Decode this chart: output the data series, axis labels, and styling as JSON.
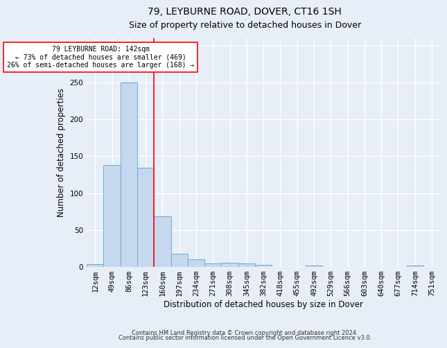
{
  "title1": "79, LEYBURNE ROAD, DOVER, CT16 1SH",
  "title2": "Size of property relative to detached houses in Dover",
  "xlabel": "Distribution of detached houses by size in Dover",
  "ylabel": "Number of detached properties",
  "footnote1": "Contains HM Land Registry data © Crown copyright and database right 2024.",
  "footnote2": "Contains public sector information licensed under the Open Government Licence v3.0.",
  "bin_labels": [
    "12sqm",
    "49sqm",
    "86sqm",
    "123sqm",
    "160sqm",
    "197sqm",
    "234sqm",
    "271sqm",
    "308sqm",
    "345sqm",
    "382sqm",
    "418sqm",
    "455sqm",
    "492sqm",
    "529sqm",
    "566sqm",
    "603sqm",
    "640sqm",
    "677sqm",
    "714sqm",
    "751sqm"
  ],
  "bar_values": [
    4,
    138,
    250,
    134,
    69,
    18,
    10,
    5,
    6,
    5,
    3,
    0,
    0,
    2,
    0,
    0,
    0,
    0,
    0,
    2,
    0
  ],
  "bar_color": "#c5d8ee",
  "bar_edgecolor": "#6aaad4",
  "red_line_x": 3.5,
  "annotation_text": "79 LEYBURNE ROAD: 142sqm\n← 73% of detached houses are smaller (469)\n26% of semi-detached houses are larger (168) →",
  "ylim": [
    0,
    310
  ],
  "yticks": [
    0,
    50,
    100,
    150,
    200,
    250,
    300
  ],
  "bg_color": "#e8eef7",
  "plot_bg_color": "#e8eef7",
  "grid_color": "#ffffff",
  "title1_fontsize": 10,
  "title2_fontsize": 9,
  "xlabel_fontsize": 8.5,
  "ylabel_fontsize": 8.5,
  "tick_fontsize": 7.5,
  "footnote_fontsize": 6
}
